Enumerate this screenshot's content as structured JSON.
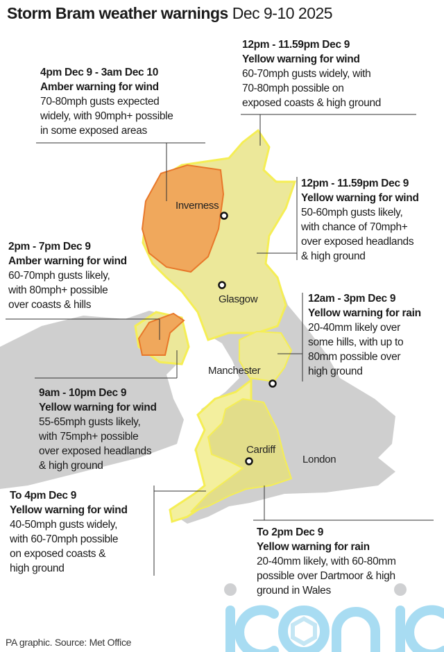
{
  "title": {
    "bold": "Storm Bram weather warnings",
    "regular": "Dec 9-10 2025"
  },
  "colors": {
    "land": "#cfcfcf",
    "yellow": "#f5ee55",
    "yellow_fill": "#ece89a",
    "amber": "#f0a85c",
    "amber_border": "#e8772a",
    "logo": "#a8dcf2"
  },
  "warnings": [
    {
      "time": "4pm Dec 9 - 3am Dec 10",
      "heading": "Amber warning for wind",
      "detail": "70-80mph gusts expected\nwidely, with 90mph+ possible\nin some exposed areas"
    },
    {
      "time": "12pm - 11.59pm Dec 9",
      "heading": "Yellow warning for wind",
      "detail": "60-70mph gusts widely, with\n70-80mph possible on\nexposed coasts & high ground"
    },
    {
      "time": "12pm - 11.59pm Dec 9",
      "heading": "Yellow warning for wind",
      "detail": "50-60mph gusts likely,\nwith chance of 70mph+\nover exposed headlands\n& high ground"
    },
    {
      "time": "2pm - 7pm Dec 9",
      "heading": "Amber warning for wind",
      "detail": "60-70mph gusts likely,\nwith 80mph+ possible\nover coasts & hills"
    },
    {
      "time": "12am - 3pm Dec 9",
      "heading": "Yellow warning for rain",
      "detail": "20-40mm likely over\nsome hills, with up to\n80mm possible over\nhigh ground"
    },
    {
      "time": "9am - 10pm Dec 9",
      "heading": "Yellow warning for wind",
      "detail": "55-65mph gusts likely,\nwith 75mph+ possible\nover exposed headlands\n& high ground"
    },
    {
      "time": "To 4pm Dec 9",
      "heading": "Yellow warning for wind",
      "detail": "40-50mph gusts widely,\nwith 60-70mph possible\non exposed coasts &\nhigh ground"
    },
    {
      "time": "To 2pm Dec 9",
      "heading": "Yellow warning for rain",
      "detail": "20-40mm likely, with 60-80mm\npossible over Dartmoor & high\nground in Wales"
    }
  ],
  "cities": [
    "Inverness",
    "Glasgow",
    "Manchester",
    "Cardiff",
    "London"
  ],
  "footer": "PA graphic. Source: Met Office",
  "logo": "iconic"
}
